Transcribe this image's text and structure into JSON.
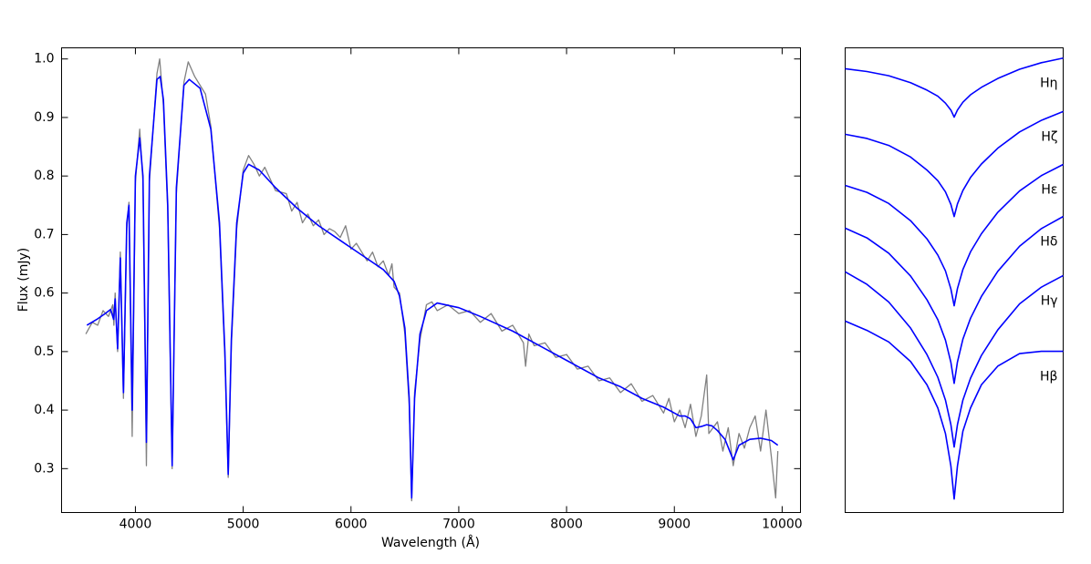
{
  "chart_data": [
    {
      "type": "line",
      "xlabel": "Wavelength (Å)",
      "ylabel": "Flux (mJy)",
      "xlim": [
        3315,
        10170
      ],
      "ylim": [
        0.225,
        1.019
      ],
      "xticks": [
        4000,
        5000,
        6000,
        7000,
        8000,
        9000,
        10000
      ],
      "yticks": [
        0.3,
        0.4,
        0.5,
        0.6,
        0.7,
        0.8,
        0.9,
        {
          "value": 1,
          "label": "1.0"
        }
      ],
      "series": [
        {
          "color": "#808080",
          "x": [
            3540,
            3600,
            3650,
            3700,
            3750,
            3790,
            3800,
            3812,
            3835,
            3860,
            3889,
            3920,
            3940,
            3970,
            4000,
            4040,
            4070,
            4102,
            4130,
            4200,
            4225,
            4260,
            4300,
            4341,
            4380,
            4450,
            4490,
            4550,
            4600,
            4650,
            4700,
            4780,
            4830,
            4861,
            4890,
            4940,
            5000,
            5050,
            5100,
            5150,
            5200,
            5300,
            5400,
            5450,
            5500,
            5550,
            5600,
            5650,
            5700,
            5750,
            5800,
            5850,
            5900,
            5950,
            6000,
            6050,
            6100,
            6150,
            6200,
            6250,
            6300,
            6350,
            6380,
            6400,
            6450,
            6500,
            6540,
            6563,
            6590,
            6640,
            6700,
            6750,
            6800,
            6900,
            7000,
            7100,
            7200,
            7300,
            7400,
            7500,
            7600,
            7620,
            7650,
            7700,
            7800,
            7900,
            8000,
            8100,
            8200,
            8300,
            8400,
            8500,
            8600,
            8700,
            8800,
            8900,
            8950,
            9000,
            9050,
            9100,
            9150,
            9200,
            9250,
            9300,
            9320,
            9400,
            9450,
            9500,
            9546,
            9600,
            9650,
            9700,
            9750,
            9800,
            9850,
            9900,
            9940,
            9960
          ],
          "values": [
            0.53,
            0.55,
            0.545,
            0.57,
            0.56,
            0.58,
            0.545,
            0.6,
            0.5,
            0.67,
            0.42,
            0.71,
            0.755,
            0.355,
            0.79,
            0.88,
            0.79,
            0.305,
            0.79,
            0.975,
            1.0,
            0.92,
            0.74,
            0.3,
            0.77,
            0.96,
            0.995,
            0.97,
            0.955,
            0.94,
            0.885,
            0.71,
            0.49,
            0.285,
            0.51,
            0.71,
            0.81,
            0.835,
            0.82,
            0.8,
            0.815,
            0.775,
            0.77,
            0.74,
            0.755,
            0.72,
            0.735,
            0.715,
            0.725,
            0.7,
            0.71,
            0.705,
            0.695,
            0.715,
            0.675,
            0.685,
            0.67,
            0.655,
            0.67,
            0.645,
            0.655,
            0.63,
            0.65,
            0.61,
            0.6,
            0.53,
            0.41,
            0.245,
            0.43,
            0.52,
            0.58,
            0.585,
            0.57,
            0.58,
            0.565,
            0.57,
            0.55,
            0.565,
            0.535,
            0.545,
            0.515,
            0.475,
            0.53,
            0.51,
            0.515,
            0.49,
            0.495,
            0.47,
            0.475,
            0.45,
            0.455,
            0.43,
            0.445,
            0.415,
            0.425,
            0.395,
            0.42,
            0.38,
            0.4,
            0.37,
            0.41,
            0.355,
            0.39,
            0.46,
            0.36,
            0.38,
            0.33,
            0.37,
            0.305,
            0.36,
            0.335,
            0.37,
            0.39,
            0.33,
            0.4,
            0.32,
            0.25,
            0.33
          ]
        },
        {
          "color": "#0000ff",
          "x": [
            3550,
            3650,
            3720,
            3770,
            3798,
            3812,
            3835,
            3860,
            3889,
            3920,
            3940,
            3970,
            4000,
            4040,
            4070,
            4102,
            4130,
            4200,
            4230,
            4260,
            4300,
            4341,
            4380,
            4450,
            4500,
            4600,
            4700,
            4780,
            4830,
            4861,
            4890,
            4940,
            5000,
            5050,
            5150,
            5300,
            5500,
            5700,
            5900,
            6100,
            6300,
            6400,
            6450,
            6500,
            6540,
            6563,
            6590,
            6640,
            6700,
            6800,
            7000,
            7200,
            7500,
            7800,
            8000,
            8300,
            8500,
            8700,
            8900,
            9000,
            9050,
            9100,
            9150,
            9200,
            9250,
            9300,
            9350,
            9400,
            9470,
            9546,
            9600,
            9700,
            9800,
            9900,
            9960
          ],
          "values": [
            0.545,
            0.556,
            0.565,
            0.572,
            0.555,
            0.59,
            0.505,
            0.66,
            0.43,
            0.72,
            0.75,
            0.4,
            0.8,
            0.865,
            0.8,
            0.345,
            0.8,
            0.965,
            0.97,
            0.93,
            0.75,
            0.305,
            0.78,
            0.955,
            0.965,
            0.95,
            0.88,
            0.72,
            0.5,
            0.29,
            0.52,
            0.72,
            0.805,
            0.82,
            0.81,
            0.78,
            0.745,
            0.715,
            0.69,
            0.665,
            0.64,
            0.62,
            0.595,
            0.54,
            0.42,
            0.25,
            0.42,
            0.53,
            0.57,
            0.583,
            0.575,
            0.56,
            0.535,
            0.505,
            0.485,
            0.455,
            0.44,
            0.42,
            0.405,
            0.395,
            0.39,
            0.39,
            0.385,
            0.37,
            0.372,
            0.375,
            0.373,
            0.365,
            0.35,
            0.315,
            0.34,
            0.35,
            0.352,
            0.348,
            0.34
          ]
        }
      ]
    },
    {
      "type": "line",
      "xlim": [
        -1,
        1
      ],
      "ylim": [
        0,
        10
      ],
      "x": [
        -1,
        -0.8,
        -0.6,
        -0.4,
        -0.25,
        -0.15,
        -0.08,
        -0.03,
        0,
        0.03,
        0.08,
        0.15,
        0.25,
        0.4,
        0.6,
        0.8,
        1
      ],
      "series": [
        {
          "name": "Hη",
          "color": "#0000ff",
          "values": [
            9.55,
            9.49,
            9.4,
            9.25,
            9.09,
            8.96,
            8.81,
            8.66,
            8.51,
            8.66,
            8.83,
            8.99,
            9.15,
            9.34,
            9.54,
            9.68,
            9.78
          ]
        },
        {
          "name": "Hζ",
          "color": "#0000ff",
          "values": [
            8.14,
            8.05,
            7.9,
            7.65,
            7.37,
            7.14,
            6.9,
            6.63,
            6.37,
            6.64,
            6.93,
            7.21,
            7.5,
            7.84,
            8.19,
            8.44,
            8.63
          ]
        },
        {
          "name": "Hε",
          "color": "#0000ff",
          "values": [
            7.04,
            6.89,
            6.65,
            6.28,
            5.89,
            5.54,
            5.2,
            4.81,
            4.45,
            4.82,
            5.23,
            5.61,
            6.0,
            6.46,
            6.92,
            7.25,
            7.49
          ]
        },
        {
          "name": "Hδ",
          "color": "#0000ff",
          "values": [
            6.12,
            5.91,
            5.58,
            5.09,
            4.58,
            4.15,
            3.71,
            3.23,
            2.78,
            3.24,
            3.73,
            4.18,
            4.65,
            5.19,
            5.73,
            6.11,
            6.37
          ]
        },
        {
          "name": "Hγ",
          "color": "#0000ff",
          "values": [
            5.18,
            4.91,
            4.53,
            3.97,
            3.4,
            2.91,
            2.42,
            1.89,
            1.41,
            1.89,
            2.42,
            2.89,
            3.38,
            3.93,
            4.49,
            4.85,
            5.1
          ]
        },
        {
          "name": "Hβ",
          "color": "#0000ff",
          "values": [
            4.12,
            3.92,
            3.67,
            3.25,
            2.75,
            2.25,
            1.7,
            1.0,
            0.29,
            1.0,
            1.75,
            2.25,
            2.75,
            3.15,
            3.42,
            3.47,
            3.47
          ]
        }
      ]
    }
  ]
}
